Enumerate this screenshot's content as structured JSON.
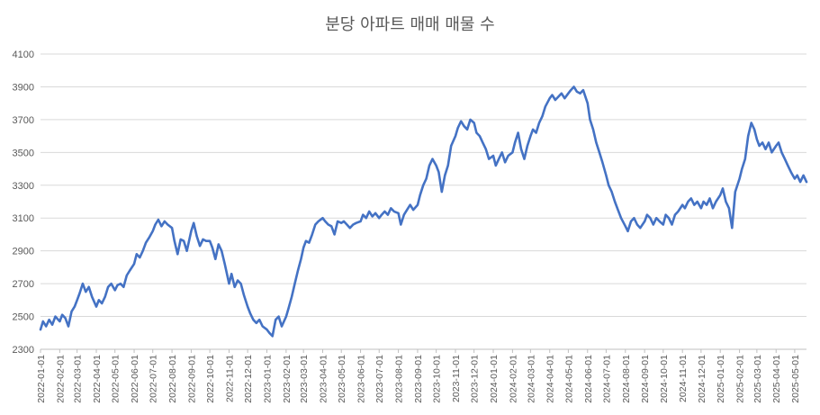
{
  "chart_data": {
    "type": "line",
    "title": "분당 아파트 매매 매물 수",
    "xlabel": "",
    "ylabel": "",
    "ylim": [
      2300,
      4100
    ],
    "yticks": [
      2300,
      2500,
      2700,
      2900,
      3100,
      3300,
      3500,
      3700,
      3900,
      4100
    ],
    "x_range": [
      "2022-01-01",
      "2025-05-20"
    ],
    "xticks": [
      "2022-01-01",
      "2022-02-01",
      "2022-03-01",
      "2022-04-01",
      "2022-05-01",
      "2022-06-01",
      "2022-07-01",
      "2022-08-01",
      "2022-09-01",
      "2022-10-01",
      "2022-11-01",
      "2022-12-01",
      "2023-01-01",
      "2023-02-01",
      "2023-03-01",
      "2023-04-01",
      "2023-05-01",
      "2023-06-01",
      "2023-07-01",
      "2023-08-01",
      "2023-09-01",
      "2023-10-01",
      "2023-11-01",
      "2023-12-01",
      "2024-01-01",
      "2024-02-01",
      "2024-03-01",
      "2024-04-01",
      "2024-05-01",
      "2024-06-01",
      "2024-07-01",
      "2024-08-01",
      "2024-09-01",
      "2024-10-01",
      "2024-11-01",
      "2024-12-01",
      "2025-01-01",
      "2025-02-01",
      "2025-03-01",
      "2025-04-01",
      "2025-05-01"
    ],
    "grid": true,
    "legend": "none",
    "series_color": "#4472c4",
    "series": [
      {
        "points": [
          [
            "2022-01-01",
            2420
          ],
          [
            "2022-01-05",
            2470
          ],
          [
            "2022-01-10",
            2440
          ],
          [
            "2022-01-15",
            2480
          ],
          [
            "2022-01-20",
            2450
          ],
          [
            "2022-01-25",
            2500
          ],
          [
            "2022-02-01",
            2470
          ],
          [
            "2022-02-05",
            2510
          ],
          [
            "2022-02-10",
            2490
          ],
          [
            "2022-02-15",
            2440
          ],
          [
            "2022-02-20",
            2530
          ],
          [
            "2022-02-25",
            2560
          ],
          [
            "2022-03-01",
            2600
          ],
          [
            "2022-03-05",
            2640
          ],
          [
            "2022-03-10",
            2700
          ],
          [
            "2022-03-15",
            2650
          ],
          [
            "2022-03-20",
            2680
          ],
          [
            "2022-03-25",
            2620
          ],
          [
            "2022-04-01",
            2560
          ],
          [
            "2022-04-05",
            2600
          ],
          [
            "2022-04-10",
            2580
          ],
          [
            "2022-04-15",
            2620
          ],
          [
            "2022-04-20",
            2680
          ],
          [
            "2022-04-25",
            2700
          ],
          [
            "2022-05-01",
            2660
          ],
          [
            "2022-05-05",
            2690
          ],
          [
            "2022-05-10",
            2700
          ],
          [
            "2022-05-15",
            2680
          ],
          [
            "2022-05-20",
            2750
          ],
          [
            "2022-05-25",
            2780
          ],
          [
            "2022-06-01",
            2820
          ],
          [
            "2022-06-05",
            2880
          ],
          [
            "2022-06-10",
            2860
          ],
          [
            "2022-06-15",
            2900
          ],
          [
            "2022-06-20",
            2950
          ],
          [
            "2022-06-25",
            2980
          ],
          [
            "2022-07-01",
            3020
          ],
          [
            "2022-07-05",
            3060
          ],
          [
            "2022-07-10",
            3090
          ],
          [
            "2022-07-15",
            3050
          ],
          [
            "2022-07-20",
            3080
          ],
          [
            "2022-07-25",
            3060
          ],
          [
            "2022-08-01",
            3040
          ],
          [
            "2022-08-05",
            2960
          ],
          [
            "2022-08-10",
            2880
          ],
          [
            "2022-08-15",
            2970
          ],
          [
            "2022-08-20",
            2960
          ],
          [
            "2022-08-25",
            2900
          ],
          [
            "2022-09-01",
            3020
          ],
          [
            "2022-09-05",
            3070
          ],
          [
            "2022-09-10",
            2990
          ],
          [
            "2022-09-15",
            2930
          ],
          [
            "2022-09-20",
            2970
          ],
          [
            "2022-09-25",
            2960
          ],
          [
            "2022-10-01",
            2960
          ],
          [
            "2022-10-05",
            2920
          ],
          [
            "2022-10-10",
            2850
          ],
          [
            "2022-10-15",
            2940
          ],
          [
            "2022-10-20",
            2900
          ],
          [
            "2022-10-25",
            2820
          ],
          [
            "2022-11-01",
            2700
          ],
          [
            "2022-11-05",
            2760
          ],
          [
            "2022-11-10",
            2680
          ],
          [
            "2022-11-15",
            2720
          ],
          [
            "2022-11-20",
            2700
          ],
          [
            "2022-11-25",
            2630
          ],
          [
            "2022-12-01",
            2560
          ],
          [
            "2022-12-05",
            2520
          ],
          [
            "2022-12-10",
            2480
          ],
          [
            "2022-12-15",
            2460
          ],
          [
            "2022-12-20",
            2480
          ],
          [
            "2022-12-25",
            2440
          ],
          [
            "2023-01-01",
            2420
          ],
          [
            "2023-01-05",
            2400
          ],
          [
            "2023-01-10",
            2380
          ],
          [
            "2023-01-15",
            2480
          ],
          [
            "2023-01-20",
            2500
          ],
          [
            "2023-01-25",
            2440
          ],
          [
            "2023-02-01",
            2500
          ],
          [
            "2023-02-05",
            2550
          ],
          [
            "2023-02-10",
            2620
          ],
          [
            "2023-02-15",
            2700
          ],
          [
            "2023-02-20",
            2780
          ],
          [
            "2023-02-25",
            2850
          ],
          [
            "2023-03-01",
            2920
          ],
          [
            "2023-03-05",
            2960
          ],
          [
            "2023-03-10",
            2950
          ],
          [
            "2023-03-15",
            3000
          ],
          [
            "2023-03-20",
            3060
          ],
          [
            "2023-03-25",
            3080
          ],
          [
            "2023-04-01",
            3100
          ],
          [
            "2023-04-05",
            3080
          ],
          [
            "2023-04-10",
            3060
          ],
          [
            "2023-04-15",
            3050
          ],
          [
            "2023-04-20",
            3000
          ],
          [
            "2023-04-25",
            3080
          ],
          [
            "2023-05-01",
            3070
          ],
          [
            "2023-05-05",
            3080
          ],
          [
            "2023-05-10",
            3060
          ],
          [
            "2023-05-15",
            3040
          ],
          [
            "2023-05-20",
            3060
          ],
          [
            "2023-05-25",
            3070
          ],
          [
            "2023-06-01",
            3080
          ],
          [
            "2023-06-05",
            3120
          ],
          [
            "2023-06-10",
            3100
          ],
          [
            "2023-06-15",
            3140
          ],
          [
            "2023-06-20",
            3110
          ],
          [
            "2023-06-25",
            3130
          ],
          [
            "2023-07-01",
            3100
          ],
          [
            "2023-07-05",
            3120
          ],
          [
            "2023-07-10",
            3140
          ],
          [
            "2023-07-15",
            3120
          ],
          [
            "2023-07-20",
            3160
          ],
          [
            "2023-07-25",
            3140
          ],
          [
            "2023-08-01",
            3130
          ],
          [
            "2023-08-05",
            3060
          ],
          [
            "2023-08-10",
            3120
          ],
          [
            "2023-08-15",
            3150
          ],
          [
            "2023-08-20",
            3180
          ],
          [
            "2023-08-25",
            3150
          ],
          [
            "2023-09-01",
            3180
          ],
          [
            "2023-09-05",
            3240
          ],
          [
            "2023-09-10",
            3300
          ],
          [
            "2023-09-15",
            3340
          ],
          [
            "2023-09-20",
            3420
          ],
          [
            "2023-09-25",
            3460
          ],
          [
            "2023-10-01",
            3420
          ],
          [
            "2023-10-05",
            3380
          ],
          [
            "2023-10-10",
            3260
          ],
          [
            "2023-10-15",
            3360
          ],
          [
            "2023-10-20",
            3420
          ],
          [
            "2023-10-25",
            3540
          ],
          [
            "2023-11-01",
            3600
          ],
          [
            "2023-11-05",
            3650
          ],
          [
            "2023-11-10",
            3690
          ],
          [
            "2023-11-15",
            3660
          ],
          [
            "2023-11-20",
            3640
          ],
          [
            "2023-11-25",
            3700
          ],
          [
            "2023-12-01",
            3680
          ],
          [
            "2023-12-05",
            3620
          ],
          [
            "2023-12-10",
            3600
          ],
          [
            "2023-12-15",
            3560
          ],
          [
            "2023-12-20",
            3520
          ],
          [
            "2023-12-25",
            3460
          ],
          [
            "2024-01-01",
            3480
          ],
          [
            "2024-01-05",
            3420
          ],
          [
            "2024-01-10",
            3460
          ],
          [
            "2024-01-15",
            3500
          ],
          [
            "2024-01-20",
            3440
          ],
          [
            "2024-01-25",
            3480
          ],
          [
            "2024-02-01",
            3500
          ],
          [
            "2024-02-05",
            3560
          ],
          [
            "2024-02-10",
            3620
          ],
          [
            "2024-02-15",
            3520
          ],
          [
            "2024-02-20",
            3460
          ],
          [
            "2024-02-25",
            3540
          ],
          [
            "2024-03-01",
            3600
          ],
          [
            "2024-03-05",
            3640
          ],
          [
            "2024-03-10",
            3620
          ],
          [
            "2024-03-15",
            3680
          ],
          [
            "2024-03-20",
            3720
          ],
          [
            "2024-03-25",
            3780
          ],
          [
            "2024-04-01",
            3830
          ],
          [
            "2024-04-05",
            3850
          ],
          [
            "2024-04-10",
            3820
          ],
          [
            "2024-04-15",
            3840
          ],
          [
            "2024-04-20",
            3860
          ],
          [
            "2024-04-25",
            3830
          ],
          [
            "2024-05-01",
            3860
          ],
          [
            "2024-05-05",
            3880
          ],
          [
            "2024-05-10",
            3900
          ],
          [
            "2024-05-15",
            3870
          ],
          [
            "2024-05-20",
            3860
          ],
          [
            "2024-05-25",
            3880
          ],
          [
            "2024-06-01",
            3800
          ],
          [
            "2024-06-05",
            3700
          ],
          [
            "2024-06-10",
            3640
          ],
          [
            "2024-06-15",
            3560
          ],
          [
            "2024-06-20",
            3500
          ],
          [
            "2024-06-25",
            3440
          ],
          [
            "2024-07-01",
            3360
          ],
          [
            "2024-07-05",
            3300
          ],
          [
            "2024-07-10",
            3260
          ],
          [
            "2024-07-15",
            3200
          ],
          [
            "2024-07-20",
            3150
          ],
          [
            "2024-07-25",
            3100
          ],
          [
            "2024-08-01",
            3050
          ],
          [
            "2024-08-05",
            3020
          ],
          [
            "2024-08-10",
            3080
          ],
          [
            "2024-08-15",
            3100
          ],
          [
            "2024-08-20",
            3060
          ],
          [
            "2024-08-25",
            3040
          ],
          [
            "2024-09-01",
            3080
          ],
          [
            "2024-09-05",
            3120
          ],
          [
            "2024-09-10",
            3100
          ],
          [
            "2024-09-15",
            3060
          ],
          [
            "2024-09-20",
            3100
          ],
          [
            "2024-09-25",
            3080
          ],
          [
            "2024-10-01",
            3060
          ],
          [
            "2024-10-05",
            3120
          ],
          [
            "2024-10-10",
            3100
          ],
          [
            "2024-10-15",
            3060
          ],
          [
            "2024-10-20",
            3120
          ],
          [
            "2024-10-25",
            3140
          ],
          [
            "2024-11-01",
            3180
          ],
          [
            "2024-11-05",
            3160
          ],
          [
            "2024-11-10",
            3200
          ],
          [
            "2024-11-15",
            3220
          ],
          [
            "2024-11-20",
            3180
          ],
          [
            "2024-11-25",
            3200
          ],
          [
            "2024-12-01",
            3160
          ],
          [
            "2024-12-05",
            3200
          ],
          [
            "2024-12-10",
            3180
          ],
          [
            "2024-12-15",
            3220
          ],
          [
            "2024-12-20",
            3160
          ],
          [
            "2024-12-25",
            3200
          ],
          [
            "2025-01-01",
            3240
          ],
          [
            "2025-01-05",
            3280
          ],
          [
            "2025-01-10",
            3200
          ],
          [
            "2025-01-15",
            3160
          ],
          [
            "2025-01-20",
            3040
          ],
          [
            "2025-01-25",
            3260
          ],
          [
            "2025-02-01",
            3340
          ],
          [
            "2025-02-05",
            3400
          ],
          [
            "2025-02-10",
            3460
          ],
          [
            "2025-02-15",
            3600
          ],
          [
            "2025-02-20",
            3680
          ],
          [
            "2025-02-25",
            3640
          ],
          [
            "2025-03-01",
            3580
          ],
          [
            "2025-03-05",
            3540
          ],
          [
            "2025-03-10",
            3560
          ],
          [
            "2025-03-15",
            3520
          ],
          [
            "2025-03-20",
            3560
          ],
          [
            "2025-03-25",
            3500
          ],
          [
            "2025-04-01",
            3540
          ],
          [
            "2025-04-05",
            3560
          ],
          [
            "2025-04-10",
            3500
          ],
          [
            "2025-04-15",
            3460
          ],
          [
            "2025-04-20",
            3420
          ],
          [
            "2025-04-25",
            3380
          ],
          [
            "2025-05-01",
            3340
          ],
          [
            "2025-05-05",
            3360
          ],
          [
            "2025-05-10",
            3320
          ],
          [
            "2025-05-15",
            3360
          ],
          [
            "2025-05-20",
            3320
          ]
        ]
      }
    ]
  }
}
